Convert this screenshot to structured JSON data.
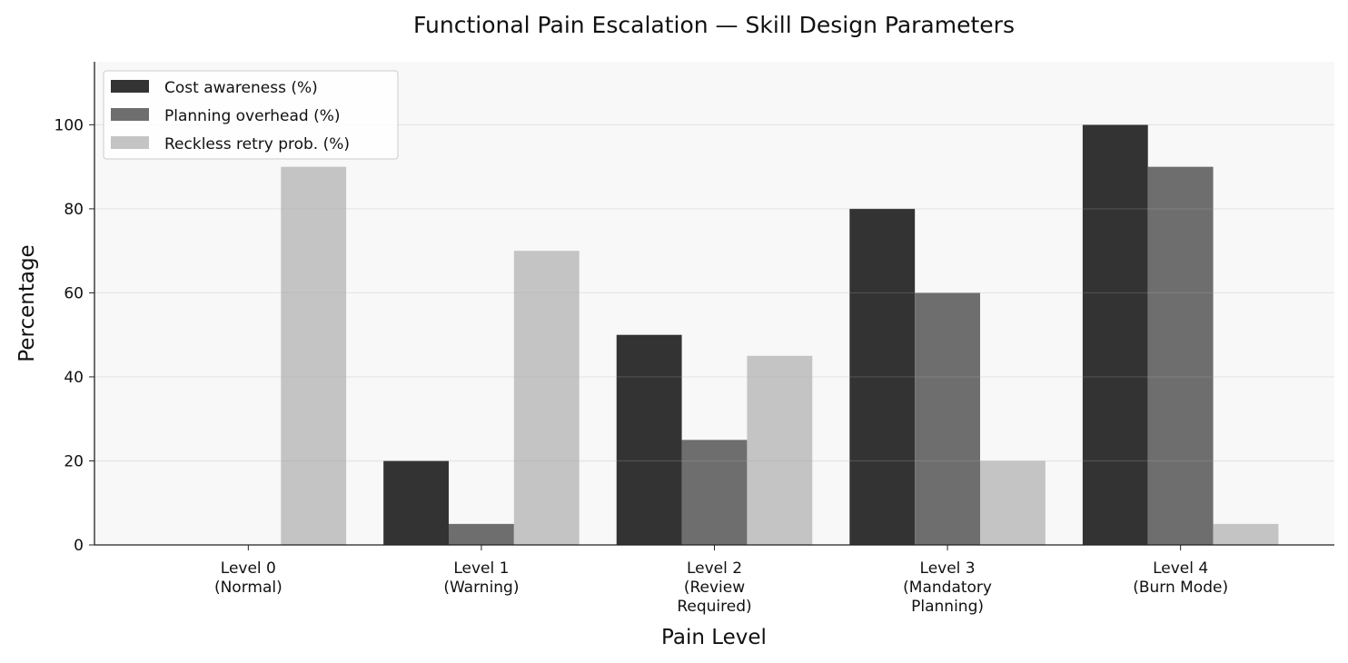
{
  "chart_data": {
    "type": "bar",
    "title": "Functional Pain Escalation — Skill Design Parameters",
    "xlabel": "Pain Level",
    "ylabel": "Percentage",
    "categories": [
      [
        "Level 0",
        "(Normal)"
      ],
      [
        "Level 1",
        "(Warning)"
      ],
      [
        "Level 2",
        "(Review",
        "Required)"
      ],
      [
        "Level 3",
        "(Mandatory",
        "Planning)"
      ],
      [
        "Level 4",
        "(Burn Mode)"
      ]
    ],
    "series": [
      {
        "name": "Cost awareness (%)",
        "color": "#333333",
        "values": [
          0,
          20,
          50,
          80,
          100
        ]
      },
      {
        "name": "Planning overhead (%)",
        "color": "#6e6e6e",
        "values": [
          0,
          5,
          25,
          60,
          90
        ]
      },
      {
        "name": "Reckless retry prob. (%)",
        "color": "#c4c4c4",
        "values": [
          90,
          70,
          45,
          20,
          5
        ]
      }
    ],
    "ylim": [
      0,
      115
    ],
    "yticks": [
      0,
      20,
      40,
      60,
      80,
      100
    ],
    "grid": "y",
    "legend": "top-left",
    "plot_background": "#f8f8f8"
  }
}
